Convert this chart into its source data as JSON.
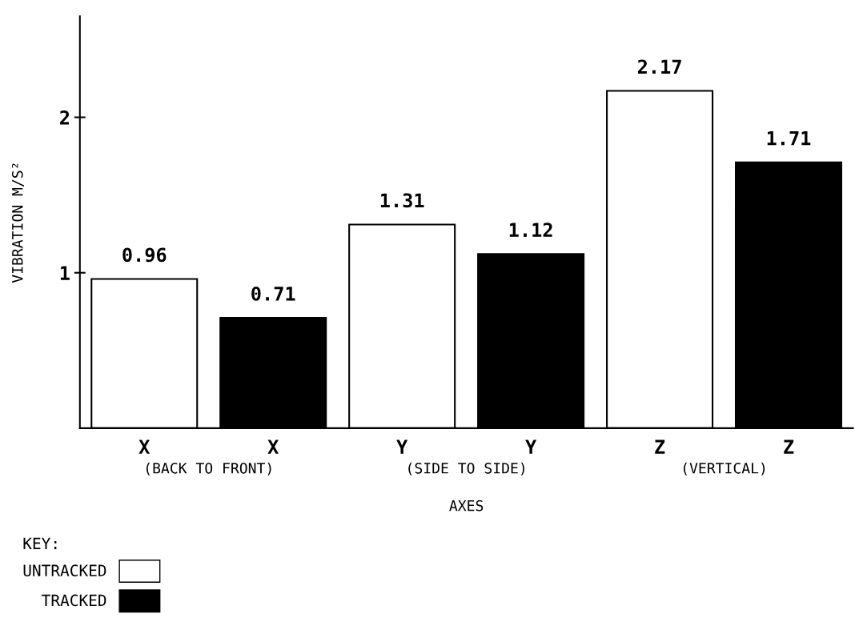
{
  "chart_data": {
    "type": "bar",
    "categories": [
      "X",
      "X",
      "Y",
      "Y",
      "Z",
      "Z"
    ],
    "series": [
      {
        "name": "UNTRACKED",
        "color": "#ffffff",
        "values": [
          0.96,
          null,
          1.31,
          null,
          2.17,
          null
        ]
      },
      {
        "name": "TRACKED",
        "color": "#000000",
        "values": [
          null,
          0.71,
          null,
          1.12,
          null,
          1.71
        ]
      }
    ],
    "xlabel": "AXES",
    "ylabel": "VIBRATION M/S²",
    "legend_title": "KEY:",
    "annotations": [
      "(BACK TO FRONT)",
      "(SIDE TO SIDE)",
      "(VERTICAL)"
    ],
    "ylim": [
      0,
      2.65
    ],
    "yticks": [
      1,
      2
    ],
    "data_labels": true,
    "legend": "bottom left",
    "grid": false
  }
}
